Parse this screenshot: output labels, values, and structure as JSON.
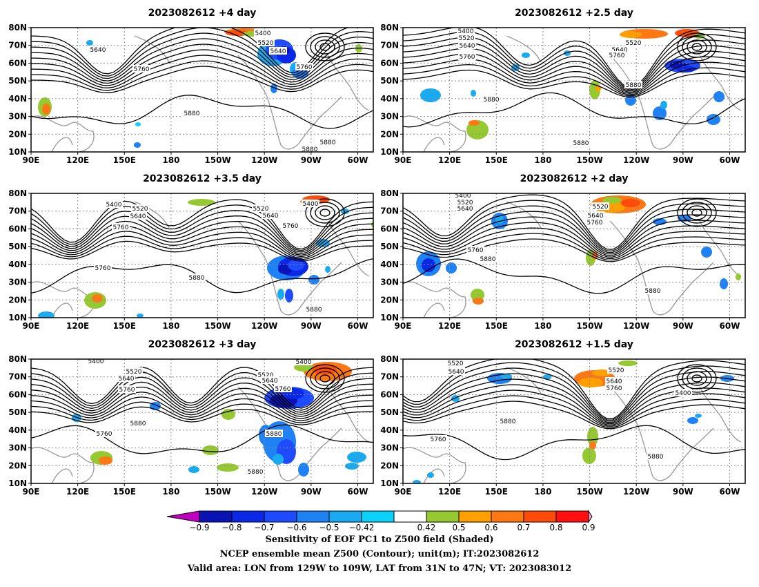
{
  "chart_data": {
    "type": "contour-map",
    "grid": true,
    "lon_ticks": [
      "90E",
      "120E",
      "150E",
      "180",
      "150W",
      "120W",
      "90W",
      "60W"
    ],
    "lat_ticks": [
      "10N",
      "20N",
      "30N",
      "40N",
      "50N",
      "60N",
      "70N",
      "80N"
    ],
    "lat_range": [
      10,
      80
    ],
    "lon_range": [
      90,
      310
    ],
    "panels": [
      {
        "title": "2023082612 +4 day",
        "contour_labels": [
          "5400",
          "5520",
          "5640",
          "5640",
          "5760",
          "5760",
          "5880",
          "5880",
          "5880"
        ]
      },
      {
        "title": "2023082612 +2.5 day",
        "contour_labels": [
          "5400",
          "5520",
          "5640",
          "5760",
          "5520",
          "5640",
          "5760",
          "5880",
          "5880",
          "5880"
        ]
      },
      {
        "title": "2023082612 +3.5 day",
        "contour_labels": [
          "5400",
          "5520",
          "5640",
          "5760",
          "5760",
          "5520",
          "5640",
          "5760",
          "5400",
          "5880",
          "5880"
        ]
      },
      {
        "title": "2023082612 +2 day",
        "contour_labels": [
          "5400",
          "5520",
          "5640",
          "5520",
          "5640",
          "5760",
          "5760",
          "5880",
          "5880"
        ]
      },
      {
        "title": "2023082612 +3 day",
        "contour_labels": [
          "5400",
          "5520",
          "5640",
          "5760",
          "5880",
          "5760",
          "5520",
          "5640",
          "5760",
          "5400",
          "5880",
          "5880"
        ]
      },
      {
        "title": "2023082612 +1.5 day",
        "contour_labels": [
          "5520",
          "5640",
          "5520",
          "5640",
          "5760",
          "5400",
          "5880",
          "5760",
          "5880"
        ]
      }
    ],
    "colorbar": {
      "ticks": [
        "−0.9",
        "−0.8",
        "−0.7",
        "−0.6",
        "−0.5",
        "−0.42",
        "0.42",
        "0.5",
        "0.6",
        "0.7",
        "0.8",
        "0.9"
      ],
      "colors": [
        "#c000c0",
        "#0a14b4",
        "#0a28e6",
        "#1e4bff",
        "#1e82f5",
        "#19aaf0",
        "#0ad2fa",
        "#ffffff",
        "#96c832",
        "#ffa000",
        "#ff7814",
        "#ff4b0a",
        "#ff0f0f",
        "#ff9fcb"
      ]
    }
  },
  "captions": [
    "Sensitivity of EOF PC1 to Z500 field (Shaded)",
    "NCEP ensemble mean Z500 (Contour); unit(m); IT:2023082612",
    "Valid area: LON from 129W to 109W, LAT from 31N to 47N; VT: 2023083012"
  ]
}
